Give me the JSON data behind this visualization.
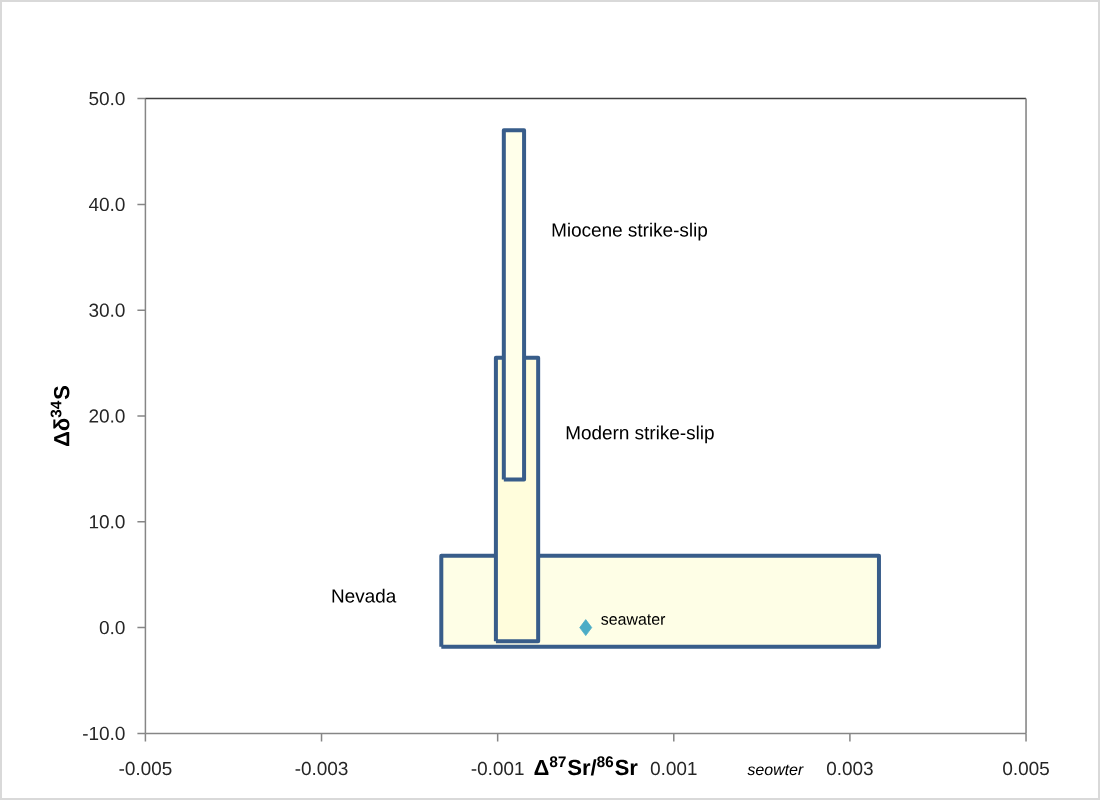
{
  "chart_data": {
    "type": "area",
    "xlabel": "Δ$^{87}$Sr/$^{86}$Sr",
    "ylabel": "Δδ$^{34}$S",
    "xlim": [
      -0.005,
      0.005
    ],
    "ylim": [
      -10,
      50
    ],
    "xticks": [
      -0.005,
      -0.003,
      -0.001,
      0.001,
      0.003,
      0.005
    ],
    "yticks": [
      {
        "value": -10,
        "label": "-10.0"
      },
      {
        "value": 0,
        "label": "0.0"
      },
      {
        "value": 10,
        "label": "10.0"
      },
      {
        "value": 20,
        "label": "20.0"
      },
      {
        "value": 30,
        "label": "30.0"
      },
      {
        "value": 40,
        "label": "40.0"
      },
      {
        "value": 50,
        "label": "50.0"
      }
    ],
    "series": [
      {
        "name": "Nevada",
        "color": "#fefee6",
        "x": [
          -0.00164,
          0.00333,
          0.00333,
          -0.00164,
          -0.00164
        ],
        "values": [
          -1.8,
          -1.8,
          6.8,
          6.8,
          -1.8
        ]
      },
      {
        "name": "Modern strike-slip",
        "color": "#fffddc",
        "x": [
          -0.00102,
          -0.00054,
          -0.00054,
          -0.00102,
          -0.00102
        ],
        "values": [
          -1.3,
          -1.3,
          25.5,
          25.5,
          -1.3
        ]
      },
      {
        "name": "Miocene strike-slip",
        "color": "#ffffea",
        "x": [
          -0.00093,
          -0.0007,
          -0.0007,
          -0.00093,
          -0.00093
        ],
        "values": [
          14,
          14,
          47,
          47,
          14
        ]
      },
      {
        "name": "seawater",
        "type": "scatter",
        "marker": "diamond",
        "color": "#4bacc6",
        "x": [
          0
        ],
        "values": [
          0
        ]
      }
    ],
    "annotations": [
      "seowter"
    ]
  }
}
